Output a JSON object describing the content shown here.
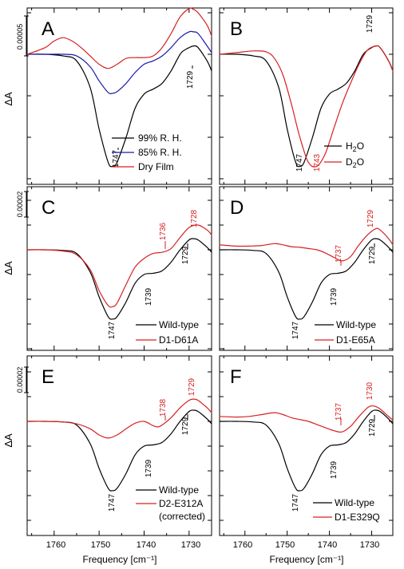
{
  "colors": {
    "black": "#000000",
    "red": "#d62020",
    "blue": "#1a1aa8"
  },
  "figure": {
    "ylabel": "ΔA",
    "xlabel": "Frequency [cm⁻¹]",
    "xticks": [
      1760,
      1750,
      1740,
      1730
    ]
  },
  "chart_data": [
    {
      "panel": "A",
      "type": "line",
      "scale_bar": "0.00005",
      "xlim": [
        1766,
        1725
      ],
      "ylim": [
        -0.00018,
        7e-05
      ],
      "grid": false,
      "legend": "bottom-right",
      "series": [
        {
          "name": "99% R. H.",
          "color": "#000000",
          "x": [
            1766,
            1762,
            1758,
            1755,
            1752,
            1750,
            1748,
            1747,
            1746,
            1744,
            1742,
            1740,
            1738,
            1736,
            1734,
            1732,
            1731,
            1730,
            1729,
            1728,
            1726,
            1725
          ],
          "y": [
            0.0,
            0.0,
            -2e-06,
            -8e-06,
            -4e-05,
            -9e-05,
            -0.00013,
            -0.000135,
            -0.00013,
            -0.0001,
            -6.5e-05,
            -4.8e-05,
            -4.2e-05,
            -3.5e-05,
            -2e-05,
            0.0,
            5e-06,
            8e-06,
            1e-05,
            8e-06,
            -8e-06,
            -2e-05
          ]
        },
        {
          "name": "85% R. H.",
          "color": "#1a1aa8",
          "x": [
            1766,
            1762,
            1758,
            1755,
            1752,
            1750,
            1748,
            1747,
            1746,
            1744,
            1742,
            1740,
            1738,
            1736,
            1734,
            1732,
            1730,
            1729,
            1728,
            1726,
            1725
          ],
          "y": [
            0.0,
            0.0,
            0.0,
            -2e-06,
            -1.5e-05,
            -3.2e-05,
            -4.6e-05,
            -4.7e-05,
            -4.5e-05,
            -3.5e-05,
            -2.2e-05,
            -1.2e-05,
            -8e-06,
            -2e-06,
            8e-06,
            2e-05,
            2.7e-05,
            2.7e-05,
            2.5e-05,
            1e-05,
            2e-06
          ]
        },
        {
          "name": "Dry Film",
          "color": "#d62020",
          "x": [
            1766,
            1762,
            1760,
            1758,
            1756,
            1754,
            1752,
            1750,
            1748,
            1746,
            1744,
            1742,
            1740,
            1738,
            1736,
            1734,
            1732,
            1730,
            1729,
            1728,
            1726,
            1725
          ],
          "y": [
            0.0,
            8e-06,
            1.6e-05,
            2e-05,
            1.6e-05,
            8e-06,
            -2e-06,
            -1.2e-05,
            -1.7e-05,
            -1.2e-05,
            -5e-06,
            -4e-06,
            -4e-06,
            -2e-06,
            8e-06,
            2.5e-05,
            4.5e-05,
            5.5e-05,
            5.4e-05,
            5e-05,
            3.5e-05,
            2.2e-05
          ]
        }
      ],
      "annotations": [
        {
          "text": "1747",
          "color": "#000000"
        },
        {
          "text": "1729",
          "color": "#000000"
        }
      ]
    },
    {
      "panel": "B",
      "type": "line",
      "xlim": [
        1766,
        1725
      ],
      "ylim": [
        -0.00018,
        7e-05
      ],
      "grid": false,
      "legend": "bottom-right",
      "series": [
        {
          "name": "H2O",
          "color": "#000000",
          "x": [
            1766,
            1762,
            1758,
            1755,
            1752,
            1750,
            1748,
            1747,
            1746,
            1744,
            1742,
            1740,
            1738,
            1736,
            1734,
            1732,
            1730,
            1729,
            1728,
            1726,
            1725
          ],
          "y": [
            0.0,
            0.0,
            -2e-06,
            -8e-06,
            -4e-05,
            -9e-05,
            -0.00013,
            -0.000135,
            -0.00013,
            -0.0001,
            -6.5e-05,
            -4.8e-05,
            -4.2e-05,
            -3.5e-05,
            -2e-05,
            0.0,
            8e-06,
            1e-05,
            8e-06,
            -8e-06,
            -2e-05
          ]
        },
        {
          "name": "D2O",
          "color": "#d62020",
          "x": [
            1766,
            1762,
            1758,
            1755,
            1753,
            1751,
            1749,
            1747,
            1745,
            1743,
            1741,
            1739,
            1737,
            1735,
            1733,
            1731,
            1729,
            1728,
            1726,
            1725
          ],
          "y": [
            0.0,
            2e-06,
            4e-06,
            3e-06,
            -5e-06,
            -2.5e-05,
            -6e-05,
            -0.0001,
            -0.00013,
            -0.000135,
            -0.00012,
            -9e-05,
            -6e-05,
            -3.5e-05,
            -1.2e-05,
            5e-06,
            1e-05,
            8e-06,
            -8e-06,
            -2e-05
          ]
        }
      ],
      "annotations": [
        {
          "text": "1729",
          "color": "#000000"
        },
        {
          "text": "1747",
          "color": "#000000"
        },
        {
          "text": "1743",
          "color": "#d62020"
        }
      ]
    },
    {
      "panel": "C",
      "type": "line",
      "scale_bar": "0.00002",
      "xlim": [
        1766,
        1725
      ],
      "ylim": [
        -7e-05,
        2.8e-05
      ],
      "grid": false,
      "legend": "bottom-right",
      "series": [
        {
          "name": "Wild-type",
          "color": "#000000",
          "x": [
            1766,
            1762,
            1758,
            1755,
            1752,
            1750,
            1748,
            1747,
            1746,
            1744,
            1742,
            1740,
            1738,
            1736,
            1734,
            1732,
            1730,
            1729,
            1728,
            1726,
            1725
          ],
          "y": [
            0.0,
            0.0,
            -5e-07,
            -3e-06,
            -1.8e-05,
            -3.8e-05,
            -5.4e-05,
            -5.6e-05,
            -5.4e-05,
            -4.2e-05,
            -2.7e-05,
            -2e-05,
            -1.9e-05,
            -1.7e-05,
            -1e-05,
            0.0,
            8e-06,
            9e-06,
            8e-06,
            2e-06,
            -2e-06
          ]
        },
        {
          "name": "D1-D61A",
          "color": "#d62020",
          "x": [
            1766,
            1762,
            1758,
            1755,
            1752,
            1750,
            1748,
            1747,
            1746,
            1744,
            1742,
            1740,
            1738,
            1736,
            1734,
            1732,
            1730,
            1728,
            1726,
            1725
          ],
          "y": [
            0.0,
            0.0,
            -1e-06,
            -4e-06,
            -1.6e-05,
            -3.3e-05,
            -4.5e-05,
            -4.6e-05,
            -4.3e-05,
            -2.8e-05,
            -1.4e-05,
            -7e-06,
            -3e-06,
            -2e-06,
            1e-06,
            1e-05,
            1.8e-05,
            2e-05,
            1.6e-05,
            1.2e-05
          ]
        }
      ],
      "annotations": [
        {
          "text": "1728",
          "color": "#d62020"
        },
        {
          "text": "1736",
          "color": "#d62020"
        },
        {
          "text": "1729",
          "color": "#000000"
        },
        {
          "text": "1739",
          "color": "#000000"
        },
        {
          "text": "1747",
          "color": "#000000"
        }
      ]
    },
    {
      "panel": "D",
      "type": "line",
      "xlim": [
        1766,
        1725
      ],
      "ylim": [
        -7e-05,
        2.8e-05
      ],
      "grid": false,
      "legend": "bottom-right",
      "series": [
        {
          "name": "Wild-type",
          "color": "#000000",
          "x": [
            1766,
            1762,
            1758,
            1755,
            1752,
            1750,
            1748,
            1747,
            1746,
            1744,
            1742,
            1740,
            1738,
            1736,
            1734,
            1732,
            1730,
            1729,
            1728,
            1726,
            1725
          ],
          "y": [
            0.0,
            0.0,
            -5e-07,
            -3e-06,
            -1.8e-05,
            -3.8e-05,
            -5.4e-05,
            -5.6e-05,
            -5.4e-05,
            -4.2e-05,
            -2.7e-05,
            -2e-05,
            -1.9e-05,
            -1.7e-05,
            -1e-05,
            0.0,
            8e-06,
            9e-06,
            8e-06,
            2e-06,
            -2e-06
          ]
        },
        {
          "name": "D1-E65A",
          "color": "#d62020",
          "x": [
            1766,
            1762,
            1759,
            1756,
            1753,
            1751,
            1749,
            1747,
            1745,
            1743,
            1741,
            1739,
            1737,
            1735,
            1733,
            1731,
            1729,
            1728,
            1726,
            1725
          ],
          "y": [
            4e-06,
            3e-06,
            3e-06,
            3.5e-06,
            5e-06,
            4e-06,
            2.5e-06,
            2e-06,
            1e-06,
            0.0,
            -2.5e-06,
            -6e-06,
            -9e-06,
            -5.5e-06,
            4e-06,
            1.2e-05,
            1.7e-05,
            1.6e-05,
            9e-06,
            4e-06
          ]
        }
      ],
      "annotations": [
        {
          "text": "1729",
          "color": "#d62020"
        },
        {
          "text": "1737",
          "color": "#d62020"
        },
        {
          "text": "1729",
          "color": "#000000"
        },
        {
          "text": "1739",
          "color": "#000000"
        },
        {
          "text": "1747",
          "color": "#000000"
        }
      ]
    },
    {
      "panel": "E",
      "type": "line",
      "scale_bar": "0.00002",
      "xlim": [
        1766,
        1725
      ],
      "ylim": [
        -7e-05,
        2.8e-05
      ],
      "grid": false,
      "legend": "bottom-right",
      "series": [
        {
          "name": "Wild-type",
          "color": "#000000",
          "x": [
            1766,
            1762,
            1758,
            1755,
            1752,
            1750,
            1748,
            1747,
            1746,
            1744,
            1742,
            1740,
            1738,
            1736,
            1734,
            1732,
            1730,
            1729,
            1728,
            1726,
            1725
          ],
          "y": [
            0.0,
            0.0,
            -5e-07,
            -3e-06,
            -1.8e-05,
            -3.8e-05,
            -5.4e-05,
            -5.6e-05,
            -5.4e-05,
            -4.2e-05,
            -2.7e-05,
            -2e-05,
            -1.9e-05,
            -1.7e-05,
            -1e-05,
            0.0,
            8e-06,
            9e-06,
            8e-06,
            2e-06,
            -2e-06
          ]
        },
        {
          "name": "D2-E312A (corrected)",
          "color": "#d62020",
          "x": [
            1766,
            1762,
            1758,
            1755,
            1752,
            1750,
            1748,
            1746,
            1744,
            1742,
            1740,
            1738,
            1737,
            1736,
            1734,
            1732,
            1730,
            1729,
            1728,
            1726,
            1725
          ],
          "y": [
            0.0,
            0.0,
            -5e-07,
            -2e-06,
            -6e-06,
            -1.1e-05,
            -1.35e-05,
            -1.1e-05,
            -6e-06,
            -1.5e-06,
            0.0,
            -3.5e-06,
            -4.5e-06,
            -3e-06,
            3e-06,
            1.1e-05,
            1.7e-05,
            1.8e-05,
            1.7e-05,
            1.1e-05,
            7e-06
          ]
        }
      ],
      "annotations": [
        {
          "text": "1738",
          "color": "#d62020"
        },
        {
          "text": "1729",
          "color": "#d62020"
        },
        {
          "text": "1729",
          "color": "#000000"
        },
        {
          "text": "1739",
          "color": "#000000"
        },
        {
          "text": "1747",
          "color": "#000000"
        }
      ]
    },
    {
      "panel": "F",
      "type": "line",
      "xlim": [
        1766,
        1725
      ],
      "ylim": [
        -7e-05,
        2.8e-05
      ],
      "grid": false,
      "legend": "bottom-right",
      "series": [
        {
          "name": "Wild-type",
          "color": "#000000",
          "x": [
            1766,
            1762,
            1758,
            1755,
            1752,
            1750,
            1748,
            1747,
            1746,
            1744,
            1742,
            1740,
            1738,
            1736,
            1734,
            1732,
            1730,
            1729,
            1728,
            1726,
            1725
          ],
          "y": [
            0.0,
            0.0,
            -5e-07,
            -3e-06,
            -1.8e-05,
            -3.8e-05,
            -5.4e-05,
            -5.6e-05,
            -5.4e-05,
            -4.2e-05,
            -2.7e-05,
            -2e-05,
            -1.9e-05,
            -1.7e-05,
            -1e-05,
            0.0,
            8e-06,
            9e-06,
            8e-06,
            2e-06,
            -2e-06
          ]
        },
        {
          "name": "D1-E329Q",
          "color": "#d62020",
          "x": [
            1766,
            1762,
            1759,
            1756,
            1753,
            1751,
            1749,
            1747,
            1745,
            1743,
            1741,
            1739,
            1737,
            1735,
            1733,
            1731,
            1730,
            1729,
            1728,
            1726,
            1725
          ],
          "y": [
            4e-06,
            3.5e-06,
            4e-06,
            5.5e-06,
            7e-06,
            5.5e-06,
            3e-06,
            1.5e-06,
            0.0,
            -2.5e-06,
            -5e-06,
            -7.5e-06,
            -8.5e-06,
            -4e-06,
            4e-06,
            1.1e-05,
            1.25e-05,
            1.2e-05,
            1e-05,
            4e-06,
            1e-06
          ]
        }
      ],
      "annotations": [
        {
          "text": "1730",
          "color": "#d62020"
        },
        {
          "text": "1737",
          "color": "#d62020"
        },
        {
          "text": "1729",
          "color": "#000000"
        },
        {
          "text": "1739",
          "color": "#000000"
        },
        {
          "text": "1747",
          "color": "#000000"
        }
      ]
    }
  ]
}
